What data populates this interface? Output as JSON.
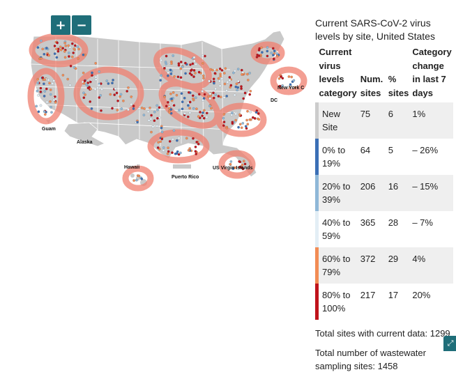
{
  "map": {
    "zoom_in_label": "+",
    "zoom_out_label": "−",
    "labels": {
      "guam": "Guam",
      "alaska": "Alaska",
      "hawaii": "Hawaii",
      "puerto_rico": "Puerto Rico",
      "virgin_islands": "US Virgin Islands",
      "new_york": "New York C",
      "dc": "DC"
    },
    "colors": {
      "land": "#c9c9c9",
      "border": "#ffffff",
      "highlight": "#f08070",
      "level_0_19": "#3b6fb6",
      "level_20_39": "#8fb8d8",
      "level_40_59": "#e3eef5",
      "level_60_79": "#f28c55",
      "level_80_100": "#c0131b",
      "new_site": "#ffffff"
    }
  },
  "panel": {
    "title": "Current SARS-CoV-2 virus levels by site, United States",
    "headers": {
      "category": "Current virus levels category",
      "num_sites": "Num. sites",
      "pct_sites": "% sites",
      "change": "Category change in last 7 days"
    },
    "rows": [
      {
        "category": "New Site",
        "num": "75",
        "pct": "6",
        "change": "1%",
        "color": "#ffffff"
      },
      {
        "category": "0% to 19%",
        "num": "64",
        "pct": "5",
        "change": "– 26%",
        "color": "#3b6fb6"
      },
      {
        "category": "20% to 39%",
        "num": "206",
        "pct": "16",
        "change": "– 15%",
        "color": "#8fb8d8"
      },
      {
        "category": "40% to 59%",
        "num": "365",
        "pct": "28",
        "change": "– 7%",
        "color": "#e3eef5"
      },
      {
        "category": "60% to 79%",
        "num": "372",
        "pct": "29",
        "change": "4%",
        "color": "#f28c55"
      },
      {
        "category": "80% to 100%",
        "num": "217",
        "pct": "17",
        "change": "20%",
        "color": "#c0131b"
      }
    ],
    "total_current": "Total sites with current data: 1299",
    "total_sampling": "Total number of wastewater sampling sites: 1458"
  },
  "corner_icon": "expand-icon"
}
